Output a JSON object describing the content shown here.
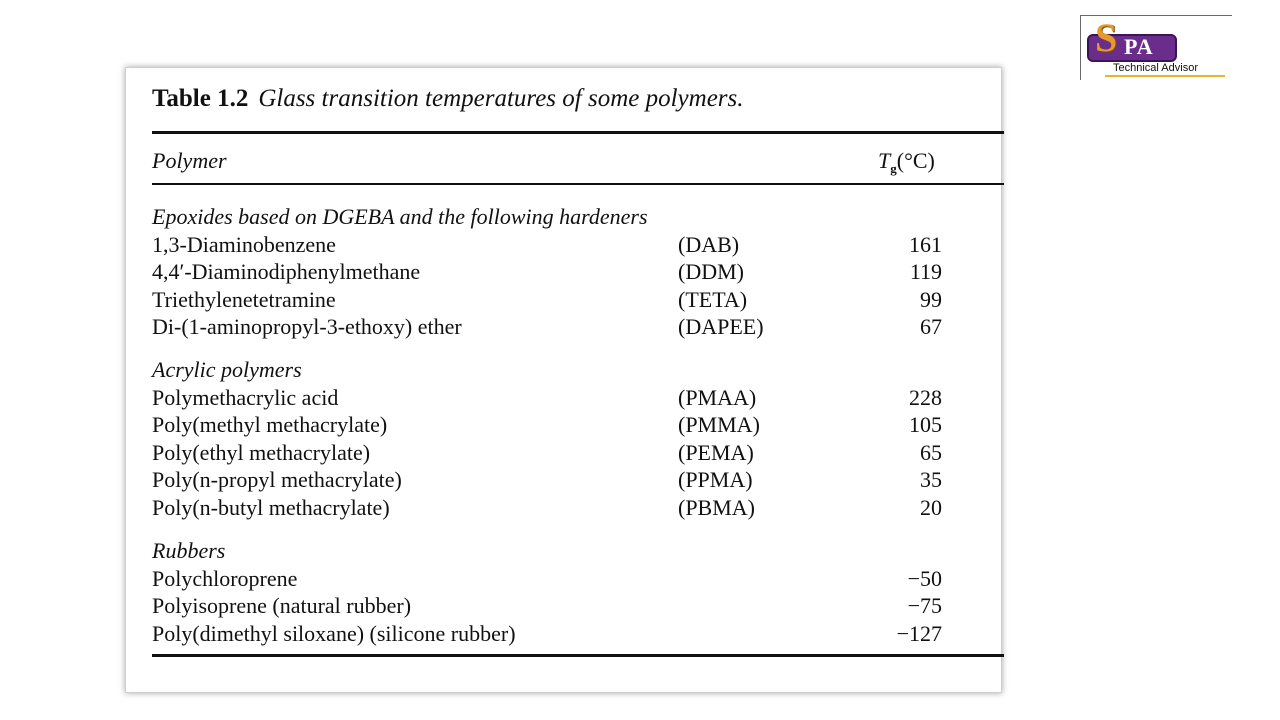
{
  "logo": {
    "letter_s": "S",
    "letters_pa": "PA",
    "subtitle": "Technical Advisor"
  },
  "table": {
    "caption_number": "Table 1.2",
    "caption_text": "Glass transition temperatures of some polymers.",
    "header_polymer": "Polymer",
    "header_tg_symbol": "T",
    "header_tg_sub": "g",
    "header_tg_unit": "(°C)",
    "groups": [
      {
        "title": "Epoxides based on DGEBA and the following hardeners",
        "rows": [
          {
            "name": "1,3-Diaminobenzene",
            "abbr": "(DAB)",
            "tg": "161"
          },
          {
            "name": "4,4′-Diaminodiphenylmethane",
            "abbr": "(DDM)",
            "tg": "119"
          },
          {
            "name": "Triethylenetetramine",
            "abbr": "(TETA)",
            "tg": "99"
          },
          {
            "name": "Di-(1-aminopropyl-3-ethoxy) ether",
            "abbr": "(DAPEE)",
            "tg": "67"
          }
        ]
      },
      {
        "title": "Acrylic polymers",
        "rows": [
          {
            "name": "Polymethacrylic acid",
            "abbr": "(PMAA)",
            "tg": "228"
          },
          {
            "name": "Poly(methyl methacrylate)",
            "abbr": "(PMMA)",
            "tg": "105"
          },
          {
            "name": "Poly(ethyl methacrylate)",
            "abbr": "(PEMA)",
            "tg": "65"
          },
          {
            "name": "Poly(n-propyl methacrylate)",
            "abbr": "(PPMA)",
            "tg": "35"
          },
          {
            "name": "Poly(n-butyl methacrylate)",
            "abbr": "(PBMA)",
            "tg": "20"
          }
        ]
      },
      {
        "title": "Rubbers",
        "rows": [
          {
            "name": "Polychloroprene",
            "abbr": "",
            "tg": "−50"
          },
          {
            "name": "Polyisoprene (natural rubber)",
            "abbr": "",
            "tg": "−75"
          },
          {
            "name": "Poly(dimethyl siloxane) (silicone rubber)",
            "abbr": "",
            "tg": "−127"
          }
        ]
      }
    ]
  }
}
